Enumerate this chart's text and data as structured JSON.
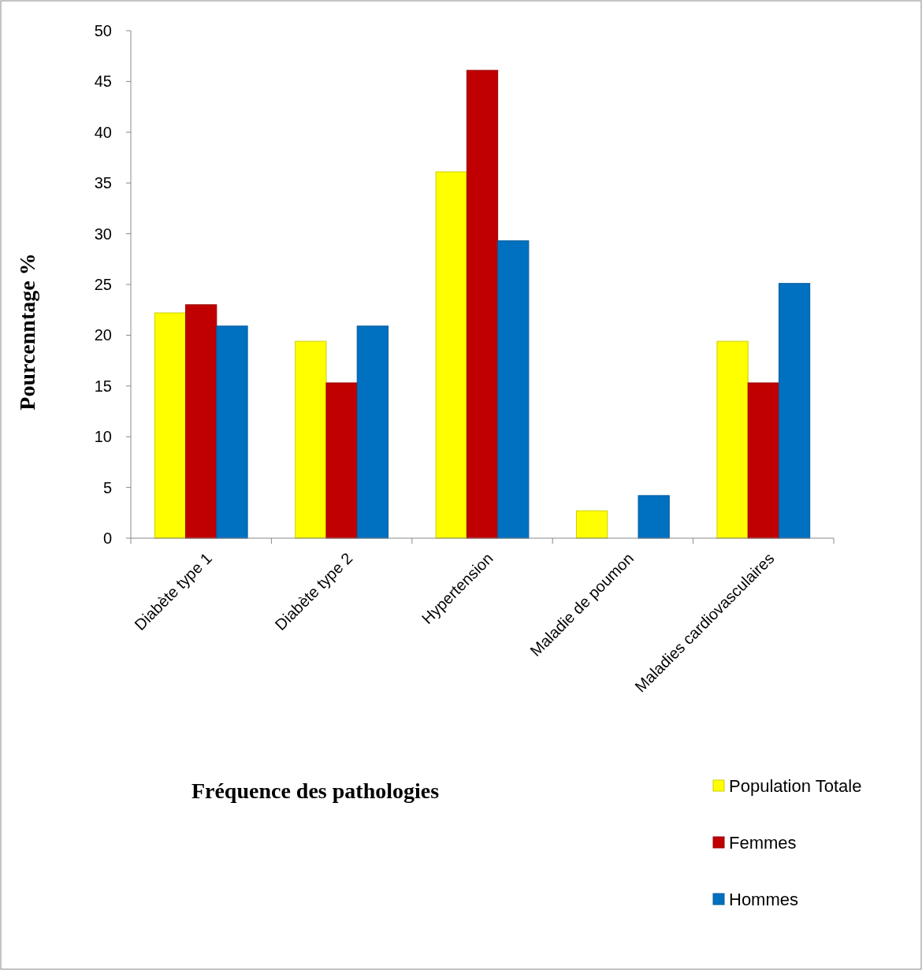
{
  "chart_data": {
    "type": "bar",
    "xlabel": "Fréquence des pathologies",
    "ylabel": "Pourcenntage %",
    "categories": [
      "Diabète type 1",
      "Diabète type 2",
      "Hypertension",
      "Maladie de poumon",
      "Maladies cardiovasculaires"
    ],
    "series": [
      {
        "name": "Population Totale",
        "color": "#ffff00",
        "values": [
          22.2,
          19.4,
          36.1,
          2.7,
          19.4
        ]
      },
      {
        "name": "Femmes",
        "color": "#c00000",
        "values": [
          23.0,
          15.3,
          46.1,
          0,
          15.3
        ]
      },
      {
        "name": "Hommes",
        "color": "#0070c0",
        "values": [
          20.9,
          20.9,
          29.3,
          4.2,
          25.1
        ]
      }
    ],
    "ylim": [
      0,
      50
    ],
    "yticks": [
      0,
      5,
      10,
      15,
      20,
      25,
      30,
      35,
      40,
      45,
      50
    ],
    "grid": false,
    "legend": "bottom right"
  }
}
